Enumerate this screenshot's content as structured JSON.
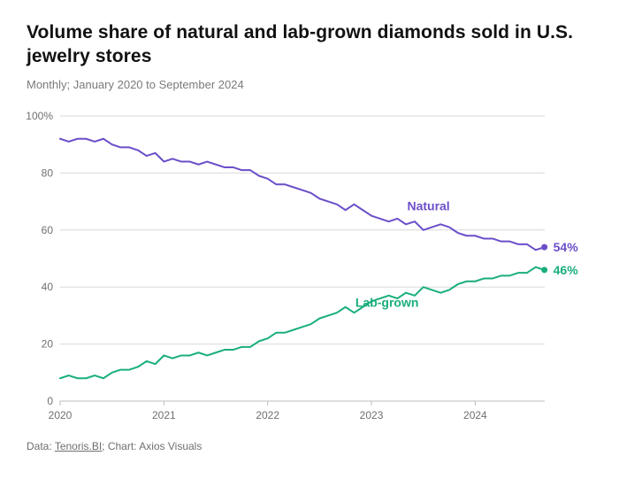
{
  "title": "Volume share of natural and lab-grown diamonds sold in U.S. jewelry stores",
  "subtitle": "Monthly; January 2020 to September 2024",
  "footer_prefix": "Data: ",
  "footer_source": "Tenoris.BI",
  "footer_suffix": "; Chart: Axios Visuals",
  "chart": {
    "type": "line",
    "background_color": "#ffffff",
    "grid_color": "#d9d9d9",
    "axis_baseline_color": "#bdbdbd",
    "axis_text_color": "#6f6f6f",
    "x_start": 2020.0,
    "x_end": 2024.67,
    "x_ticks": [
      2020,
      2021,
      2022,
      2023,
      2024
    ],
    "x_tick_labels": [
      "2020",
      "2021",
      "2022",
      "2023",
      "2024"
    ],
    "ylim": [
      0,
      100
    ],
    "y_ticks": [
      0,
      20,
      40,
      60,
      80,
      100
    ],
    "y_tick_labels": [
      "0",
      "20",
      "40",
      "60",
      "80",
      "100%"
    ],
    "line_width": 2,
    "marker_radius": 3.5,
    "series": [
      {
        "id": "natural",
        "label": "Natural",
        "color": "#6b4fc9",
        "label_x": 2023.55,
        "label_y": 67,
        "end_value_text": "54%",
        "x": [
          2020.0,
          2020.083,
          2020.167,
          2020.25,
          2020.333,
          2020.417,
          2020.5,
          2020.583,
          2020.667,
          2020.75,
          2020.833,
          2020.917,
          2021.0,
          2021.083,
          2021.167,
          2021.25,
          2021.333,
          2021.417,
          2021.5,
          2021.583,
          2021.667,
          2021.75,
          2021.833,
          2021.917,
          2022.0,
          2022.083,
          2022.167,
          2022.25,
          2022.333,
          2022.417,
          2022.5,
          2022.583,
          2022.667,
          2022.75,
          2022.833,
          2022.917,
          2023.0,
          2023.083,
          2023.167,
          2023.25,
          2023.333,
          2023.417,
          2023.5,
          2023.583,
          2023.667,
          2023.75,
          2023.833,
          2023.917,
          2024.0,
          2024.083,
          2024.167,
          2024.25,
          2024.333,
          2024.417,
          2024.5,
          2024.583,
          2024.667
        ],
        "y": [
          92,
          91,
          92,
          92,
          91,
          92,
          90,
          89,
          89,
          88,
          86,
          87,
          84,
          85,
          84,
          84,
          83,
          84,
          83,
          82,
          82,
          81,
          81,
          79,
          78,
          76,
          76,
          75,
          74,
          73,
          71,
          70,
          69,
          67,
          69,
          67,
          65,
          64,
          63,
          64,
          62,
          63,
          60,
          61,
          62,
          61,
          59,
          58,
          58,
          57,
          57,
          56,
          56,
          55,
          55,
          53,
          54
        ]
      },
      {
        "id": "lab-grown",
        "label": "Lab-grown",
        "color": "#1aaf7a",
        "label_x": 2023.15,
        "label_y": 33,
        "end_value_text": "46%",
        "x": [
          2020.0,
          2020.083,
          2020.167,
          2020.25,
          2020.333,
          2020.417,
          2020.5,
          2020.583,
          2020.667,
          2020.75,
          2020.833,
          2020.917,
          2021.0,
          2021.083,
          2021.167,
          2021.25,
          2021.333,
          2021.417,
          2021.5,
          2021.583,
          2021.667,
          2021.75,
          2021.833,
          2021.917,
          2022.0,
          2022.083,
          2022.167,
          2022.25,
          2022.333,
          2022.417,
          2022.5,
          2022.583,
          2022.667,
          2022.75,
          2022.833,
          2022.917,
          2023.0,
          2023.083,
          2023.167,
          2023.25,
          2023.333,
          2023.417,
          2023.5,
          2023.583,
          2023.667,
          2023.75,
          2023.833,
          2023.917,
          2024.0,
          2024.083,
          2024.167,
          2024.25,
          2024.333,
          2024.417,
          2024.5,
          2024.583,
          2024.667
        ],
        "y": [
          8,
          9,
          8,
          8,
          9,
          8,
          10,
          11,
          11,
          12,
          14,
          13,
          16,
          15,
          16,
          16,
          17,
          16,
          17,
          18,
          18,
          19,
          19,
          21,
          22,
          24,
          24,
          25,
          26,
          27,
          29,
          30,
          31,
          33,
          31,
          33,
          35,
          36,
          37,
          36,
          38,
          37,
          40,
          39,
          38,
          39,
          41,
          42,
          42,
          43,
          43,
          44,
          44,
          45,
          45,
          47,
          46
        ]
      }
    ]
  }
}
